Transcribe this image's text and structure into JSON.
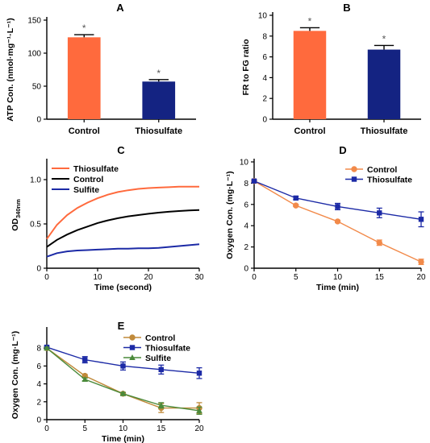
{
  "chart_data": [
    {
      "panel": "A",
      "type": "bar",
      "categories": [
        "Control",
        "Thiosulfate"
      ],
      "values": [
        124,
        57
      ],
      "errors": [
        4,
        3
      ],
      "annotations": [
        "*",
        "*"
      ],
      "colors": [
        "#ff6a3d",
        "#142382"
      ],
      "ylabel": "ATP Con. (nmol·mg⁻¹·L⁻¹)",
      "ylim": [
        0,
        150
      ],
      "yticks": [
        0,
        50,
        100,
        150
      ]
    },
    {
      "panel": "B",
      "type": "bar",
      "categories": [
        "Control",
        "Thiosulfate"
      ],
      "values": [
        8.5,
        6.7
      ],
      "errors": [
        0.3,
        0.4
      ],
      "annotations": [
        "*",
        "*"
      ],
      "colors": [
        "#ff6a3d",
        "#142382"
      ],
      "ylabel": "FR to FG ratio",
      "ylim": [
        0,
        10
      ],
      "yticks": [
        0,
        2,
        4,
        6,
        8,
        10
      ]
    },
    {
      "panel": "C",
      "type": "line",
      "xlabel": "Time (second)",
      "ylabel": "OD",
      "ylabel_sub": "340nm",
      "xlim": [
        0,
        30
      ],
      "ylim": [
        0,
        1.2
      ],
      "xticks": [
        0,
        10,
        20,
        30
      ],
      "yticks": [
        0,
        0.5,
        1.0
      ],
      "ytick_labels": [
        "0",
        "0.5",
        "1.0"
      ],
      "legend_position": "top-left",
      "series": [
        {
          "name": "Thiosulfate",
          "color": "#ff6a3d",
          "x": [
            0,
            2,
            4,
            6,
            8,
            10,
            12,
            14,
            16,
            18,
            20,
            22,
            24,
            26,
            28,
            30
          ],
          "y": [
            0.33,
            0.49,
            0.6,
            0.68,
            0.74,
            0.79,
            0.83,
            0.86,
            0.88,
            0.895,
            0.905,
            0.91,
            0.915,
            0.92,
            0.92,
            0.92
          ]
        },
        {
          "name": "Control",
          "color": "#000000",
          "x": [
            0,
            2,
            4,
            6,
            8,
            10,
            12,
            14,
            16,
            18,
            20,
            22,
            24,
            26,
            28,
            30
          ],
          "y": [
            0.24,
            0.32,
            0.38,
            0.43,
            0.47,
            0.51,
            0.54,
            0.565,
            0.585,
            0.6,
            0.615,
            0.627,
            0.637,
            0.645,
            0.652,
            0.657
          ]
        },
        {
          "name": "Sulfite",
          "color": "#1c2aa6",
          "x": [
            0,
            2,
            4,
            6,
            8,
            10,
            12,
            14,
            16,
            18,
            20,
            22,
            24,
            26,
            28,
            30
          ],
          "y": [
            0.13,
            0.17,
            0.19,
            0.2,
            0.205,
            0.21,
            0.215,
            0.22,
            0.22,
            0.225,
            0.225,
            0.23,
            0.24,
            0.25,
            0.26,
            0.27
          ]
        }
      ]
    },
    {
      "panel": "D",
      "type": "line",
      "xlabel": "Time (min)",
      "ylabel": "Oxygen Con. (mg·L⁻¹)",
      "xlim": [
        0,
        20
      ],
      "ylim": [
        0,
        10
      ],
      "xticks": [
        0,
        5,
        10,
        15,
        20
      ],
      "yticks": [
        0,
        2,
        4,
        6,
        8,
        10
      ],
      "legend_position": "top-right",
      "series": [
        {
          "name": "Control",
          "color": "#f28a4a",
          "marker": "circle",
          "x": [
            0,
            5,
            10,
            15,
            20
          ],
          "y": [
            8.2,
            5.9,
            4.4,
            2.4,
            0.6
          ],
          "err": [
            0.1,
            0.1,
            0.1,
            0.25,
            0.25
          ]
        },
        {
          "name": "Thiosulfate",
          "color": "#1c2aa6",
          "marker": "square",
          "x": [
            0,
            5,
            10,
            15,
            20
          ],
          "y": [
            8.2,
            6.6,
            5.8,
            5.2,
            4.6
          ],
          "err": [
            0.1,
            0.15,
            0.3,
            0.45,
            0.7
          ]
        }
      ]
    },
    {
      "panel": "E",
      "type": "line",
      "xlabel": "Time (min)",
      "ylabel": "Oxygen Con. (mg·L⁻¹)",
      "xlim": [
        0,
        20
      ],
      "ylim": [
        0,
        10
      ],
      "xticks": [
        0,
        5,
        10,
        15,
        20
      ],
      "yticks": [
        0,
        2,
        4,
        6,
        8
      ],
      "legend_position": "top-right",
      "series": [
        {
          "name": "Control",
          "color": "#c08a3a",
          "marker": "circle",
          "x": [
            0,
            5,
            10,
            15,
            20
          ],
          "y": [
            8.0,
            4.9,
            2.9,
            1.3,
            1.3
          ],
          "err": [
            0.1,
            0.15,
            0.15,
            0.5,
            0.6
          ]
        },
        {
          "name": "Thiosulfate",
          "color": "#1c2aa6",
          "marker": "square",
          "x": [
            0,
            5,
            10,
            15,
            20
          ],
          "y": [
            8.1,
            6.7,
            6.0,
            5.6,
            5.2
          ],
          "err": [
            0.1,
            0.35,
            0.45,
            0.5,
            0.6
          ]
        },
        {
          "name": "Sulfite",
          "color": "#4a8a3a",
          "marker": "triangle",
          "x": [
            0,
            5,
            10,
            15,
            20
          ],
          "y": [
            8.0,
            4.5,
            2.9,
            1.6,
            1.0
          ],
          "err": [
            0.1,
            0.15,
            0.15,
            0.3,
            0.4
          ]
        }
      ]
    }
  ]
}
